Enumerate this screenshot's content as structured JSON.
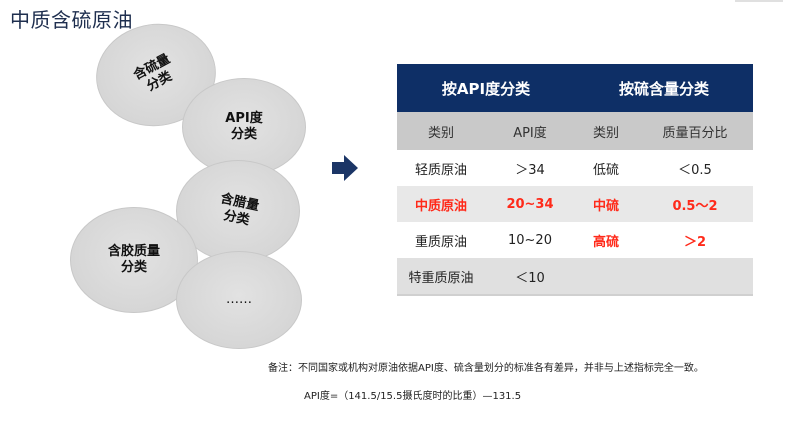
{
  "title": "中质含硫原油",
  "bubbles": [
    {
      "label": "含硫量分类"
    },
    {
      "label": "API度分类"
    },
    {
      "label": "含腊量分类"
    },
    {
      "label": "含胶质量分类"
    },
    {
      "label": "……"
    }
  ],
  "table": {
    "group_headers": [
      "按API度分类",
      "按硫含量分类"
    ],
    "col_headers": [
      "类别",
      "API度",
      "类别",
      "质量百分比"
    ],
    "rows": [
      [
        "轻质原油",
        "＞34",
        "低硫",
        "＜0.5"
      ],
      [
        "中质原油",
        "20~34",
        "中硫",
        "0.5～2"
      ],
      [
        "重质原油",
        "10~20",
        "高硫",
        "＞2"
      ],
      [
        "特重质原油",
        "＜10",
        "",
        ""
      ]
    ]
  },
  "colors": {
    "header_bg": "#0e2f66",
    "highlight": "#ff2a1a"
  },
  "note": "备注：不同国家或机构对原油依据API度、硫含量划分的标准各有差异，并非与上述指标完全一致。",
  "formula": "API度=（141.5/15.5摄氏度时的比重）—131.5"
}
